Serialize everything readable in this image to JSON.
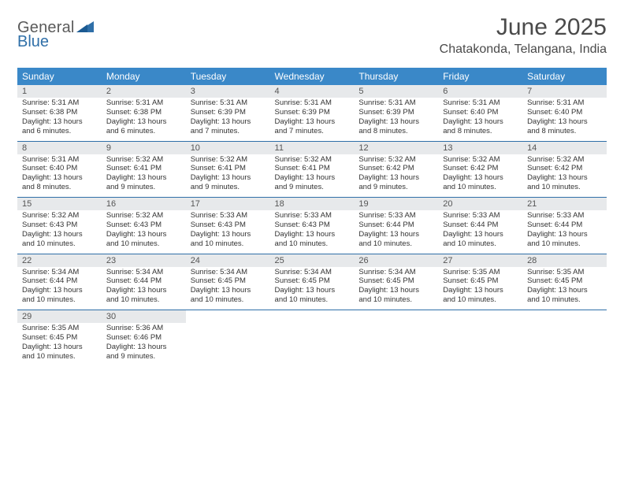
{
  "logo": {
    "text1": "General",
    "text2": "Blue"
  },
  "title": "June 2025",
  "location": "Chatakonda, Telangana, India",
  "colors": {
    "header_bg": "#3a88c8",
    "daynum_bg": "#e7e9eb",
    "row_border": "#2f6fa8",
    "logo_gray": "#5a5a5a",
    "logo_blue": "#2f6fa8"
  },
  "weekdays": [
    "Sunday",
    "Monday",
    "Tuesday",
    "Wednesday",
    "Thursday",
    "Friday",
    "Saturday"
  ],
  "weeks": [
    [
      {
        "n": "1",
        "sunrise": "5:31 AM",
        "sunset": "6:38 PM",
        "daylight": "13 hours and 6 minutes."
      },
      {
        "n": "2",
        "sunrise": "5:31 AM",
        "sunset": "6:38 PM",
        "daylight": "13 hours and 6 minutes."
      },
      {
        "n": "3",
        "sunrise": "5:31 AM",
        "sunset": "6:39 PM",
        "daylight": "13 hours and 7 minutes."
      },
      {
        "n": "4",
        "sunrise": "5:31 AM",
        "sunset": "6:39 PM",
        "daylight": "13 hours and 7 minutes."
      },
      {
        "n": "5",
        "sunrise": "5:31 AM",
        "sunset": "6:39 PM",
        "daylight": "13 hours and 8 minutes."
      },
      {
        "n": "6",
        "sunrise": "5:31 AM",
        "sunset": "6:40 PM",
        "daylight": "13 hours and 8 minutes."
      },
      {
        "n": "7",
        "sunrise": "5:31 AM",
        "sunset": "6:40 PM",
        "daylight": "13 hours and 8 minutes."
      }
    ],
    [
      {
        "n": "8",
        "sunrise": "5:31 AM",
        "sunset": "6:40 PM",
        "daylight": "13 hours and 8 minutes."
      },
      {
        "n": "9",
        "sunrise": "5:32 AM",
        "sunset": "6:41 PM",
        "daylight": "13 hours and 9 minutes."
      },
      {
        "n": "10",
        "sunrise": "5:32 AM",
        "sunset": "6:41 PM",
        "daylight": "13 hours and 9 minutes."
      },
      {
        "n": "11",
        "sunrise": "5:32 AM",
        "sunset": "6:41 PM",
        "daylight": "13 hours and 9 minutes."
      },
      {
        "n": "12",
        "sunrise": "5:32 AM",
        "sunset": "6:42 PM",
        "daylight": "13 hours and 9 minutes."
      },
      {
        "n": "13",
        "sunrise": "5:32 AM",
        "sunset": "6:42 PM",
        "daylight": "13 hours and 10 minutes."
      },
      {
        "n": "14",
        "sunrise": "5:32 AM",
        "sunset": "6:42 PM",
        "daylight": "13 hours and 10 minutes."
      }
    ],
    [
      {
        "n": "15",
        "sunrise": "5:32 AM",
        "sunset": "6:43 PM",
        "daylight": "13 hours and 10 minutes."
      },
      {
        "n": "16",
        "sunrise": "5:32 AM",
        "sunset": "6:43 PM",
        "daylight": "13 hours and 10 minutes."
      },
      {
        "n": "17",
        "sunrise": "5:33 AM",
        "sunset": "6:43 PM",
        "daylight": "13 hours and 10 minutes."
      },
      {
        "n": "18",
        "sunrise": "5:33 AM",
        "sunset": "6:43 PM",
        "daylight": "13 hours and 10 minutes."
      },
      {
        "n": "19",
        "sunrise": "5:33 AM",
        "sunset": "6:44 PM",
        "daylight": "13 hours and 10 minutes."
      },
      {
        "n": "20",
        "sunrise": "5:33 AM",
        "sunset": "6:44 PM",
        "daylight": "13 hours and 10 minutes."
      },
      {
        "n": "21",
        "sunrise": "5:33 AM",
        "sunset": "6:44 PM",
        "daylight": "13 hours and 10 minutes."
      }
    ],
    [
      {
        "n": "22",
        "sunrise": "5:34 AM",
        "sunset": "6:44 PM",
        "daylight": "13 hours and 10 minutes."
      },
      {
        "n": "23",
        "sunrise": "5:34 AM",
        "sunset": "6:44 PM",
        "daylight": "13 hours and 10 minutes."
      },
      {
        "n": "24",
        "sunrise": "5:34 AM",
        "sunset": "6:45 PM",
        "daylight": "13 hours and 10 minutes."
      },
      {
        "n": "25",
        "sunrise": "5:34 AM",
        "sunset": "6:45 PM",
        "daylight": "13 hours and 10 minutes."
      },
      {
        "n": "26",
        "sunrise": "5:34 AM",
        "sunset": "6:45 PM",
        "daylight": "13 hours and 10 minutes."
      },
      {
        "n": "27",
        "sunrise": "5:35 AM",
        "sunset": "6:45 PM",
        "daylight": "13 hours and 10 minutes."
      },
      {
        "n": "28",
        "sunrise": "5:35 AM",
        "sunset": "6:45 PM",
        "daylight": "13 hours and 10 minutes."
      }
    ],
    [
      {
        "n": "29",
        "sunrise": "5:35 AM",
        "sunset": "6:45 PM",
        "daylight": "13 hours and 10 minutes."
      },
      {
        "n": "30",
        "sunrise": "5:36 AM",
        "sunset": "6:46 PM",
        "daylight": "13 hours and 9 minutes."
      },
      null,
      null,
      null,
      null,
      null
    ]
  ],
  "labels": {
    "sunrise": "Sunrise:",
    "sunset": "Sunset:",
    "daylight": "Daylight:"
  }
}
